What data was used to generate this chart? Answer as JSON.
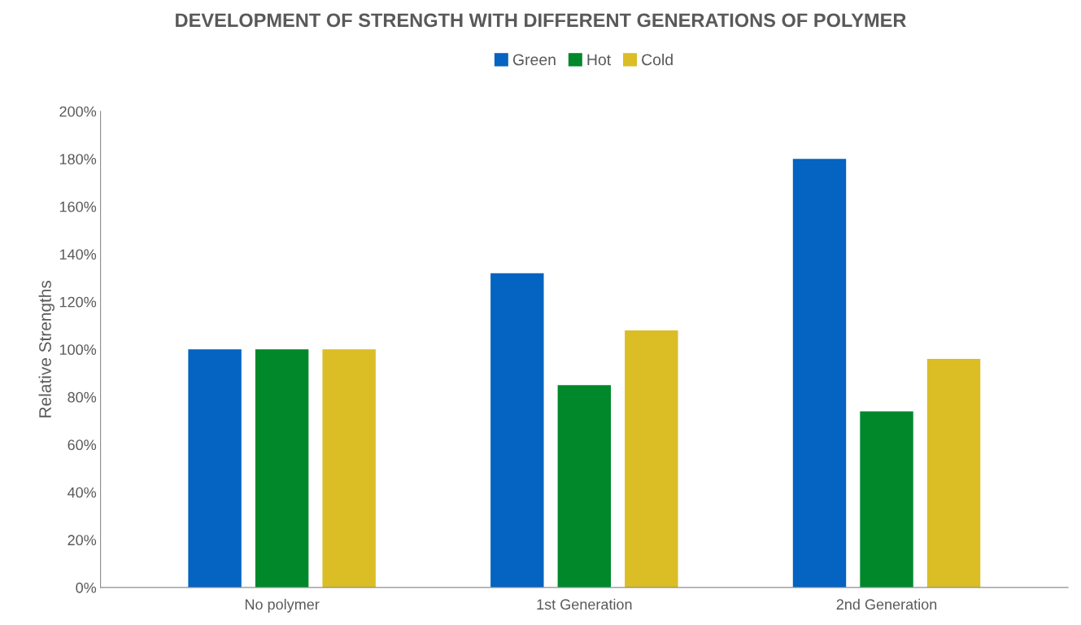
{
  "chart_data": {
    "type": "bar",
    "title": "DEVELOPMENT OF STRENGTH WITH DIFFERENT GENERATIONS OF POLYMER",
    "ylabel": "Relative Strengths",
    "categories": [
      "No polymer",
      "1st Generation",
      "2nd Generation"
    ],
    "series": [
      {
        "name": "Green",
        "color": "#0563c1",
        "values": [
          100,
          132,
          180
        ]
      },
      {
        "name": "Hot",
        "color": "#00882b",
        "values": [
          100,
          85,
          74
        ]
      },
      {
        "name": "Cold",
        "color": "#dbbd26",
        "values": [
          100,
          108,
          96
        ]
      }
    ],
    "ylim": [
      0,
      200
    ],
    "yticks": [
      {
        "value": 0,
        "label": "0%"
      },
      {
        "value": 20,
        "label": "20%"
      },
      {
        "value": 40,
        "label": "40%"
      },
      {
        "value": 60,
        "label": "60%"
      },
      {
        "value": 80,
        "label": "80%"
      },
      {
        "value": 100,
        "label": "100%"
      },
      {
        "value": 120,
        "label": "120%"
      },
      {
        "value": 140,
        "label": "140%"
      },
      {
        "value": 160,
        "label": "160%"
      },
      {
        "value": 180,
        "label": "180%"
      },
      {
        "value": 200,
        "label": "200%"
      }
    ],
    "grid": false,
    "legend": "top"
  }
}
